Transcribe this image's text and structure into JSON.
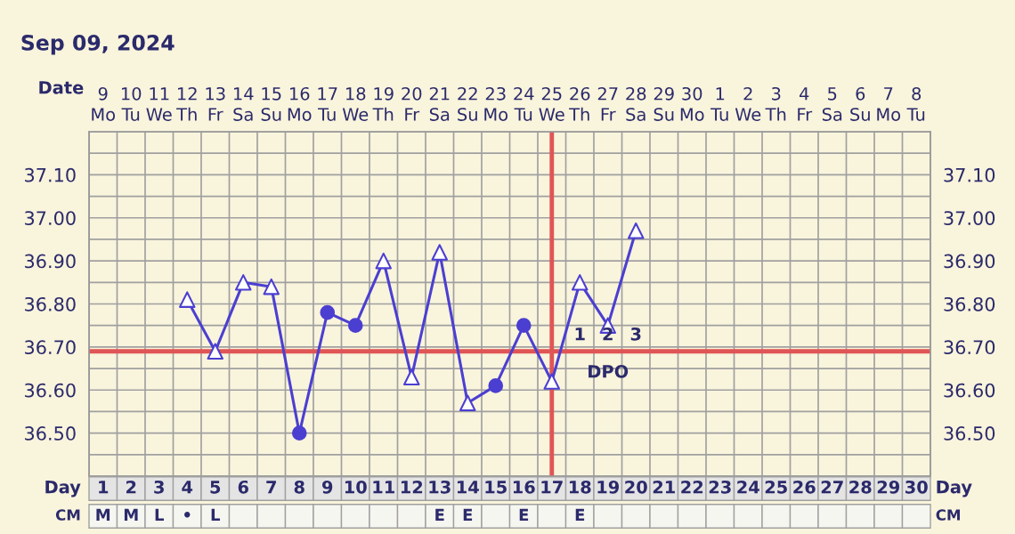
{
  "chart_data": {
    "type": "line",
    "title": "Sep 09, 2024",
    "x": [
      4,
      5,
      6,
      7,
      8,
      9,
      10,
      11,
      12,
      13,
      14,
      15,
      16,
      17,
      18,
      19,
      20
    ],
    "series": [
      {
        "type": "line",
        "color": "#4b3fd1",
        "marker": "none",
        "values": [
          36.81,
          36.69,
          36.85,
          36.84,
          36.5,
          36.78,
          36.75,
          36.9,
          36.63,
          36.92,
          36.57,
          36.61,
          36.75,
          36.62,
          36.85,
          36.75,
          36.97
        ]
      },
      {
        "type": "scatter",
        "color": "#4b3fd1",
        "marker": "triangle",
        "values": [
          36.81,
          36.69,
          36.85,
          36.84,
          null,
          null,
          null,
          36.9,
          36.63,
          36.92,
          36.57,
          null,
          null,
          36.62,
          36.85,
          36.75,
          36.97
        ]
      },
      {
        "type": "scatter",
        "color": "#4b3fd1",
        "marker": "circle",
        "values": [
          null,
          null,
          null,
          null,
          36.5,
          36.78,
          36.75,
          null,
          null,
          null,
          null,
          36.61,
          36.75,
          null,
          null,
          null,
          null
        ]
      }
    ],
    "xlabel": "Day",
    "x2label": "Date",
    "xlim": [
      0.5,
      30.5
    ],
    "xticks": [
      1,
      2,
      3,
      4,
      5,
      6,
      7,
      8,
      9,
      10,
      11,
      12,
      13,
      14,
      15,
      16,
      17,
      18,
      19,
      20,
      21,
      22,
      23,
      24,
      25,
      26,
      27,
      28,
      29,
      30
    ],
    "x2lim": [
      "2024-09-08T12:00",
      "2024-10-08T12:00"
    ],
    "x2ticks": [
      {
        "value": "2024-09-09",
        "label": "9\nMo"
      },
      {
        "value": "2024-09-10",
        "label": "10\nTu"
      },
      {
        "value": "2024-09-11",
        "label": "11\nWe"
      },
      {
        "value": "2024-09-12",
        "label": "12\nTh"
      },
      {
        "value": "2024-09-13",
        "label": "13\nFr"
      },
      {
        "value": "2024-09-14",
        "label": "14\nSa"
      },
      {
        "value": "2024-09-15",
        "label": "15\nSu"
      },
      {
        "value": "2024-09-16",
        "label": "16\nMo"
      },
      {
        "value": "2024-09-17",
        "label": "17\nTu"
      },
      {
        "value": "2024-09-18",
        "label": "18\nWe"
      },
      {
        "value": "2024-09-19",
        "label": "19\nTh"
      },
      {
        "value": "2024-09-20",
        "label": "20\nFr"
      },
      {
        "value": "2024-09-21",
        "label": "21\nSa"
      },
      {
        "value": "2024-09-22",
        "label": "22\nSu"
      },
      {
        "value": "2024-09-23",
        "label": "23\nMo"
      },
      {
        "value": "2024-09-24",
        "label": "24\nTu"
      },
      {
        "value": "2024-09-25",
        "label": "25\nWe"
      },
      {
        "value": "2024-09-26",
        "label": "26\nTh"
      },
      {
        "value": "2024-09-27",
        "label": "27\nFr"
      },
      {
        "value": "2024-09-28",
        "label": "28\nSa"
      },
      {
        "value": "2024-09-29",
        "label": "29\nSu"
      },
      {
        "value": "2024-09-30",
        "label": "30\nMo"
      },
      {
        "value": "2024-10-01",
        "label": "1\nTu"
      },
      {
        "value": "2024-10-02",
        "label": "2\nWe"
      },
      {
        "value": "2024-10-03",
        "label": "3\nTh"
      },
      {
        "value": "2024-10-04",
        "label": "4\nFr"
      },
      {
        "value": "2024-10-05",
        "label": "5\nSa"
      },
      {
        "value": "2024-10-06",
        "label": "6\nSu"
      },
      {
        "value": "2024-10-07",
        "label": "7\nMo"
      },
      {
        "value": "2024-10-08",
        "label": "8\nTu"
      }
    ],
    "ylim": [
      36.4,
      37.2
    ],
    "yticks": [
      {
        "value": 36.4,
        "label": null
      },
      {
        "value": 36.45,
        "label": null
      },
      {
        "value": 36.5,
        "label": "36.50"
      },
      {
        "value": 36.55,
        "label": null
      },
      {
        "value": 36.6,
        "label": "36.60"
      },
      {
        "value": 36.65,
        "label": null
      },
      {
        "value": 36.7,
        "label": "36.70"
      },
      {
        "value": 36.75,
        "label": null
      },
      {
        "value": 36.8,
        "label": "36.80"
      },
      {
        "value": 36.85,
        "label": null
      },
      {
        "value": 36.9,
        "label": "36.90"
      },
      {
        "value": 36.95,
        "label": null
      },
      {
        "value": 37.0,
        "label": "37.00"
      },
      {
        "value": 37.05,
        "label": null
      },
      {
        "value": 37.1,
        "label": "37.10"
      },
      {
        "value": 37.15,
        "label": null
      },
      {
        "value": 37.2,
        "label": null
      }
    ],
    "y2lim": [
      36.4,
      37.2
    ],
    "y2ticks": [
      {
        "value": 36.4,
        "label": null
      },
      {
        "value": 36.45,
        "label": null
      },
      {
        "value": 36.5,
        "label": "36.50"
      },
      {
        "value": 36.55,
        "label": null
      },
      {
        "value": 36.6,
        "label": "36.60"
      },
      {
        "value": 36.65,
        "label": null
      },
      {
        "value": 36.7,
        "label": "36.70"
      },
      {
        "value": 36.75,
        "label": null
      },
      {
        "value": 36.8,
        "label": "36.80"
      },
      {
        "value": 36.85,
        "label": null
      },
      {
        "value": 36.9,
        "label": "36.90"
      },
      {
        "value": 36.95,
        "label": null
      },
      {
        "value": 37.0,
        "label": "37.00"
      },
      {
        "value": 37.05,
        "label": null
      },
      {
        "value": 37.1,
        "label": "37.10"
      },
      {
        "value": 37.15,
        "label": null
      },
      {
        "value": 37.2,
        "label": null
      }
    ],
    "grid": true,
    "ref_lines": [
      {
        "axis": "y",
        "value": 36.69,
        "color": "#e05555"
      },
      {
        "axis": "x",
        "value": 17,
        "color": "#e05555"
      }
    ],
    "annotations": [
      "1",
      "2",
      "3",
      "DPO",
      "Day",
      "CM",
      "CM",
      "M",
      "M",
      "L",
      "•",
      "L",
      "E",
      "E",
      "E",
      "E"
    ]
  }
}
